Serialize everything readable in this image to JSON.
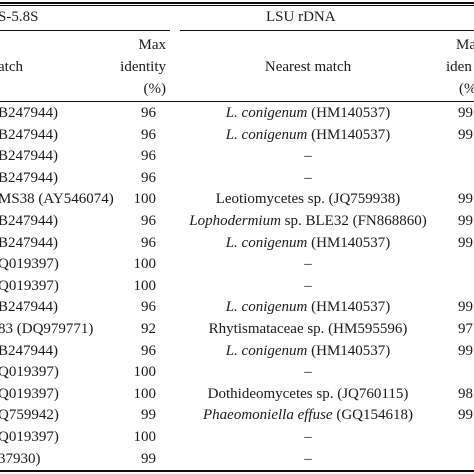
{
  "header": {
    "its_group": "S-5.8S",
    "lsu_group": "LSU rDNA",
    "its_match_label": "atch",
    "its_ident_lines": [
      "Max",
      "identity",
      "(%)"
    ],
    "lsu_match_label": "Nearest match",
    "lsu_ident_lines": [
      "Ma",
      "iden",
      "(%"
    ]
  },
  "rows": [
    {
      "its": "B247944)",
      "its_pct": "96",
      "lsu_italic": "L. conigenum",
      "lsu_rest": " (HM140537)",
      "lsu_pct": "99"
    },
    {
      "its": "B247944)",
      "its_pct": "96",
      "lsu_italic": "L. conigenum",
      "lsu_rest": " (HM140537)",
      "lsu_pct": "99"
    },
    {
      "its": "B247944)",
      "its_pct": "96",
      "lsu_italic": "",
      "lsu_rest": "–",
      "lsu_pct": ""
    },
    {
      "its": "B247944)",
      "its_pct": "96",
      "lsu_italic": "",
      "lsu_rest": "–",
      "lsu_pct": ""
    },
    {
      "its": "MS38 (AY546074)",
      "its_pct": "100",
      "lsu_italic": "",
      "lsu_rest": "Leotiomycetes sp. (JQ759938)",
      "lsu_pct": "99"
    },
    {
      "its": "B247944)",
      "its_pct": "96",
      "lsu_italic": "Lophodermium",
      "lsu_rest": " sp. BLE32 (FN868860)",
      "lsu_pct": "99"
    },
    {
      "its": "B247944)",
      "its_pct": "96",
      "lsu_italic": "L. conigenum",
      "lsu_rest": " (HM140537)",
      "lsu_pct": "99"
    },
    {
      "its": "Q019397)",
      "its_pct": "100",
      "lsu_italic": "",
      "lsu_rest": "–",
      "lsu_pct": ""
    },
    {
      "its": "Q019397)",
      "its_pct": "100",
      "lsu_italic": "",
      "lsu_rest": "–",
      "lsu_pct": ""
    },
    {
      "its": "B247944)",
      "its_pct": "96",
      "lsu_italic": "L. conigenum",
      "lsu_rest": " (HM140537)",
      "lsu_pct": "99"
    },
    {
      "its": "83 (DQ979771)",
      "its_pct": "92",
      "lsu_italic": "",
      "lsu_rest": "Rhytismataceae sp. (HM595596)",
      "lsu_pct": "97"
    },
    {
      "its": "B247944)",
      "its_pct": "96",
      "lsu_italic": "L. conigenum",
      "lsu_rest": " (HM140537)",
      "lsu_pct": "99"
    },
    {
      "its": "Q019397)",
      "its_pct": "100",
      "lsu_italic": "",
      "lsu_rest": "–",
      "lsu_pct": ""
    },
    {
      "its": "Q019397)",
      "its_pct": "100",
      "lsu_italic": "",
      "lsu_rest": "Dothideomycetes sp. (JQ760115)",
      "lsu_pct": "98"
    },
    {
      "its": "Q759942)",
      "its_pct": "99",
      "lsu_italic": "Phaeomoniella effuse",
      "lsu_rest": " (GQ154618)",
      "lsu_pct": "99"
    },
    {
      "its": "Q019397)",
      "its_pct": "100",
      "lsu_italic": "",
      "lsu_rest": "–",
      "lsu_pct": ""
    },
    {
      "its": "37930)",
      "its_pct": "99",
      "lsu_italic": "",
      "lsu_rest": "–",
      "lsu_pct": ""
    }
  ]
}
